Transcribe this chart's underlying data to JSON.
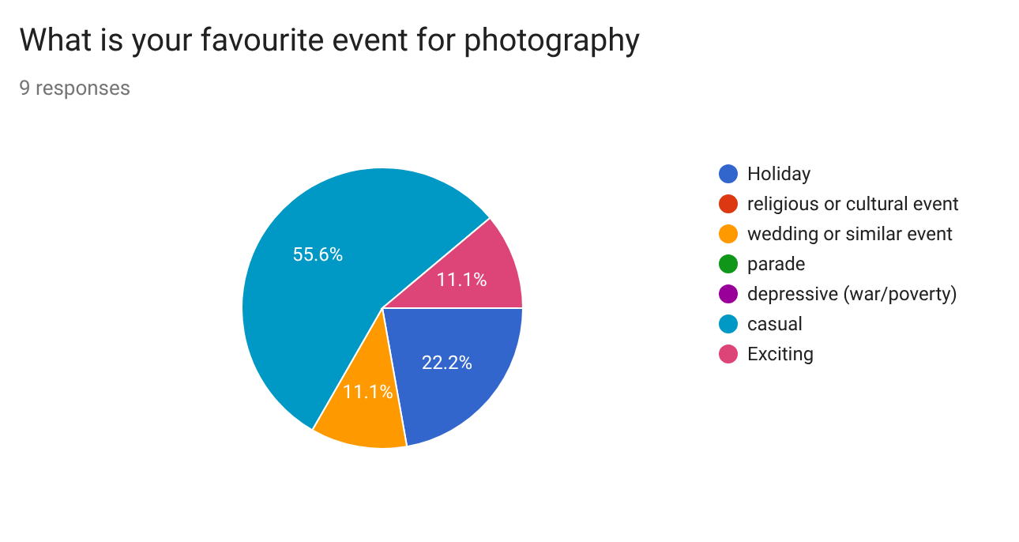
{
  "chart_data": {
    "type": "pie",
    "title": "What is your favourite event for photography",
    "subtitle": "9 responses",
    "categories": [
      "Holiday",
      "religious or cultural event",
      "wedding or similar event",
      "parade",
      "depressive (war/poverty)",
      "casual",
      "Exciting"
    ],
    "values": [
      22.2,
      0,
      11.1,
      0,
      0,
      55.6,
      11.1
    ],
    "colors": [
      "#3366cc",
      "#dc3912",
      "#ff9900",
      "#109618",
      "#990099",
      "#0099c6",
      "#dd4477"
    ],
    "value_labels": [
      "22.2%",
      null,
      "11.1%",
      null,
      null,
      "55.6%",
      "11.1%"
    ],
    "legend": "right"
  }
}
